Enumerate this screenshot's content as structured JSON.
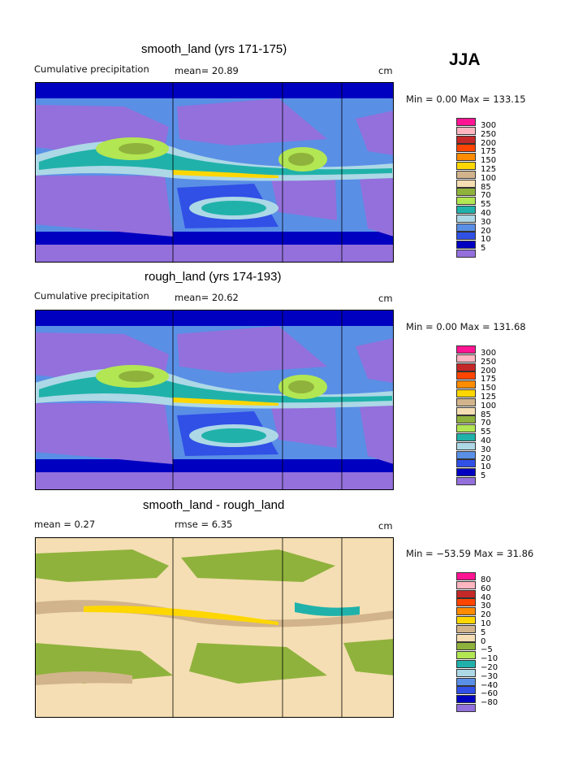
{
  "season": "JJA",
  "panels": [
    {
      "title": "smooth_land (yrs 171-175)",
      "left_label": "Cumulative precipitation",
      "mean_text": "mean=  20.89",
      "rmse_text": "",
      "units": "cm",
      "minmax": "Min =    0.00 Max = 133.15"
    },
    {
      "title": "rough_land (yrs 174-193)",
      "left_label": "Cumulative precipitation",
      "mean_text": "mean=  20.62",
      "rmse_text": "",
      "units": "cm",
      "minmax": "Min =    0.00 Max = 131.68"
    },
    {
      "title": "smooth_land - rough_land",
      "left_label": "mean =     0.27",
      "mean_text": "",
      "rmse_text": "rmse =     6.35",
      "units": "cm",
      "minmax": "Min = −53.59 Max =   31.86"
    }
  ],
  "legend_precip": {
    "labels": [
      "300",
      "250",
      "200",
      "175",
      "150",
      "125",
      "100",
      "85",
      "70",
      "55",
      "40",
      "30",
      "20",
      "10",
      "5"
    ],
    "colors": [
      "#ff1493",
      "#ffb6c1",
      "#c42828",
      "#ff4500",
      "#ff8c00",
      "#ffd700",
      "#d2b48c",
      "#f5deb3",
      "#8fb23c",
      "#b2e653",
      "#20b2aa",
      "#add8e6",
      "#5a8fe6",
      "#3050e6",
      "#0000c0",
      "#9370db"
    ]
  },
  "legend_diff": {
    "labels": [
      "80",
      "60",
      "40",
      "30",
      "20",
      "10",
      "5",
      "0",
      "−5",
      "−10",
      "−20",
      "−30",
      "−40",
      "−60",
      "−80"
    ],
    "colors": [
      "#ff1493",
      "#ffb6c1",
      "#c42828",
      "#ff4500",
      "#ff8c00",
      "#ffd700",
      "#d2b48c",
      "#f5deb3",
      "#8fb23c",
      "#b2e653",
      "#20b2aa",
      "#add8e6",
      "#5a8fe6",
      "#3050e6",
      "#0000c0",
      "#9370db"
    ]
  },
  "chart_data": {
    "type": "heatmap",
    "maps": [
      {
        "title": "smooth_land (yrs 171-175)",
        "mean": 20.89,
        "min": 0.0,
        "max": 133.15,
        "units": "cm"
      },
      {
        "title": "rough_land (yrs 174-193)",
        "mean": 20.62,
        "min": 0.0,
        "max": 131.68,
        "units": "cm"
      },
      {
        "title": "smooth_land - rough_land",
        "mean": 0.27,
        "rmse": 6.35,
        "min": -53.59,
        "max": 31.86,
        "units": "cm"
      }
    ],
    "contour_levels_precip": [
      5,
      10,
      20,
      30,
      40,
      55,
      70,
      85,
      100,
      125,
      150,
      175,
      200,
      250,
      300
    ],
    "contour_levels_diff": [
      -80,
      -60,
      -40,
      -30,
      -20,
      -10,
      -5,
      0,
      5,
      10,
      20,
      30,
      40,
      60,
      80
    ]
  }
}
